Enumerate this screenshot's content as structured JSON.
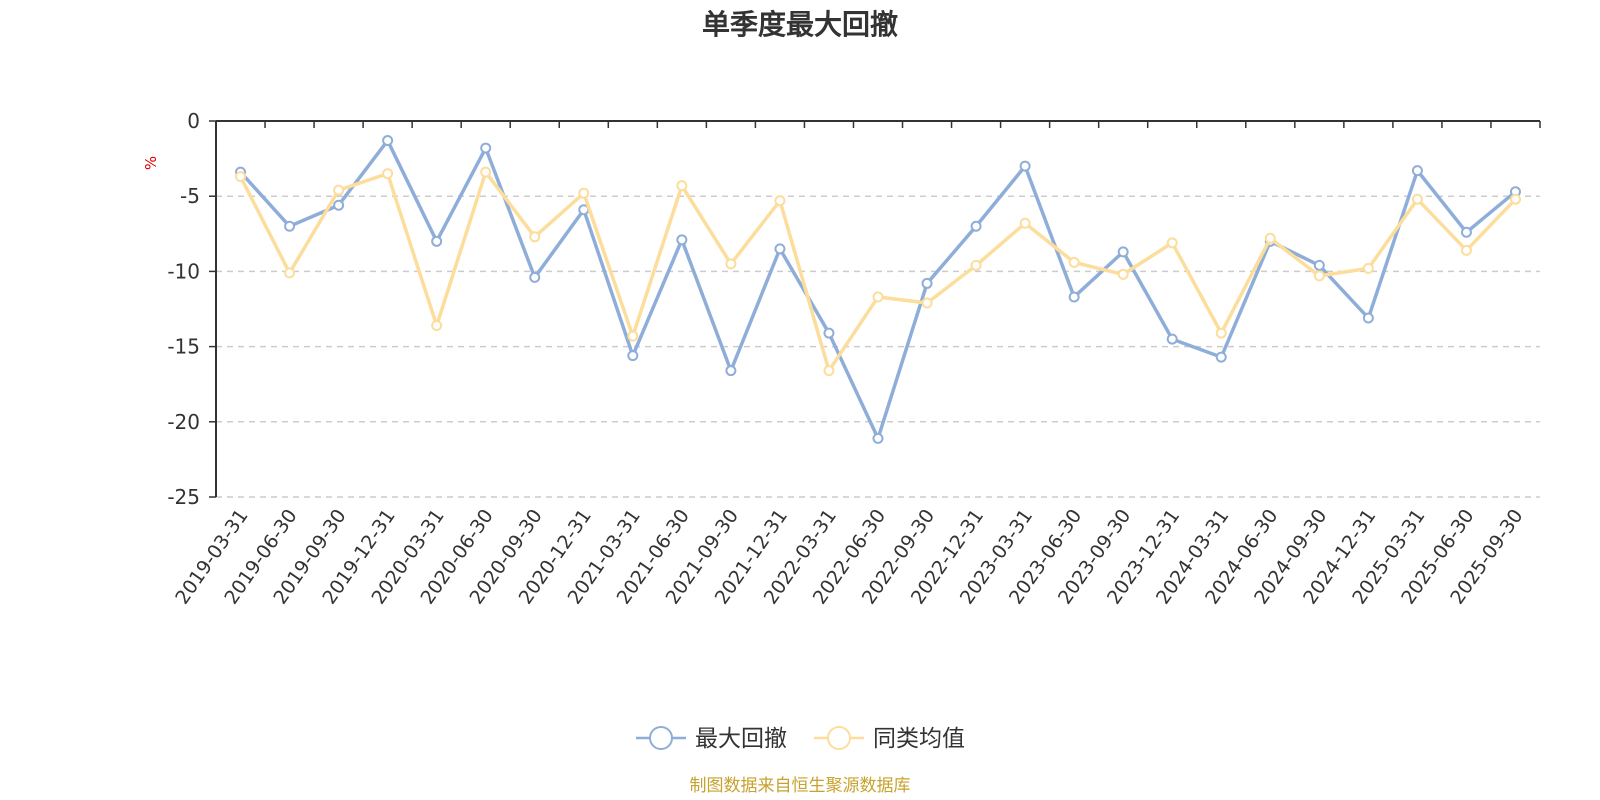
{
  "chart_data": {
    "type": "line",
    "title": "单季度最大回撤",
    "ylabel": "%",
    "ylim": [
      -25,
      0
    ],
    "yticks": [
      0,
      -5,
      -10,
      -15,
      -20,
      -25
    ],
    "grid": "horizontal-dashed",
    "legend_position": "bottom-center",
    "categories": [
      "2019-03-31",
      "2019-06-30",
      "2019-09-30",
      "2019-12-31",
      "2020-03-31",
      "2020-06-30",
      "2020-09-30",
      "2020-12-31",
      "2021-03-31",
      "2021-06-30",
      "2021-09-30",
      "2021-12-31",
      "2022-03-31",
      "2022-06-30",
      "2022-09-30",
      "2022-12-31",
      "2023-03-31",
      "2023-06-30",
      "2023-09-30",
      "2023-12-31",
      "2024-03-31",
      "2024-06-30",
      "2024-09-30",
      "2024-12-31",
      "2025-03-31",
      "2025-06-30",
      "2025-09-30"
    ],
    "series": [
      {
        "name": "最大回撤",
        "color": "#8eaed9",
        "values": [
          -3.4,
          -7.0,
          -5.6,
          -1.3,
          -8.0,
          -1.8,
          -10.4,
          -5.9,
          -15.6,
          -7.9,
          -16.6,
          -8.5,
          -14.1,
          -21.1,
          -10.8,
          -7.0,
          -3.0,
          -11.7,
          -8.7,
          -14.5,
          -15.7,
          -8.0,
          -9.6,
          -13.1,
          -3.3,
          -7.4,
          -4.7
        ]
      },
      {
        "name": "同类均值",
        "color": "#fcdd9c",
        "values": [
          -3.7,
          -10.1,
          -4.6,
          -3.5,
          -13.6,
          -3.4,
          -7.7,
          -4.8,
          -14.3,
          -4.3,
          -9.5,
          -5.3,
          -16.6,
          -11.7,
          -12.1,
          -9.6,
          -6.8,
          -9.4,
          -10.2,
          -8.1,
          -14.1,
          -7.8,
          -10.3,
          -9.8,
          -5.2,
          -8.6,
          -5.2
        ]
      }
    ],
    "source": "制图数据来自恒生聚源数据库"
  }
}
